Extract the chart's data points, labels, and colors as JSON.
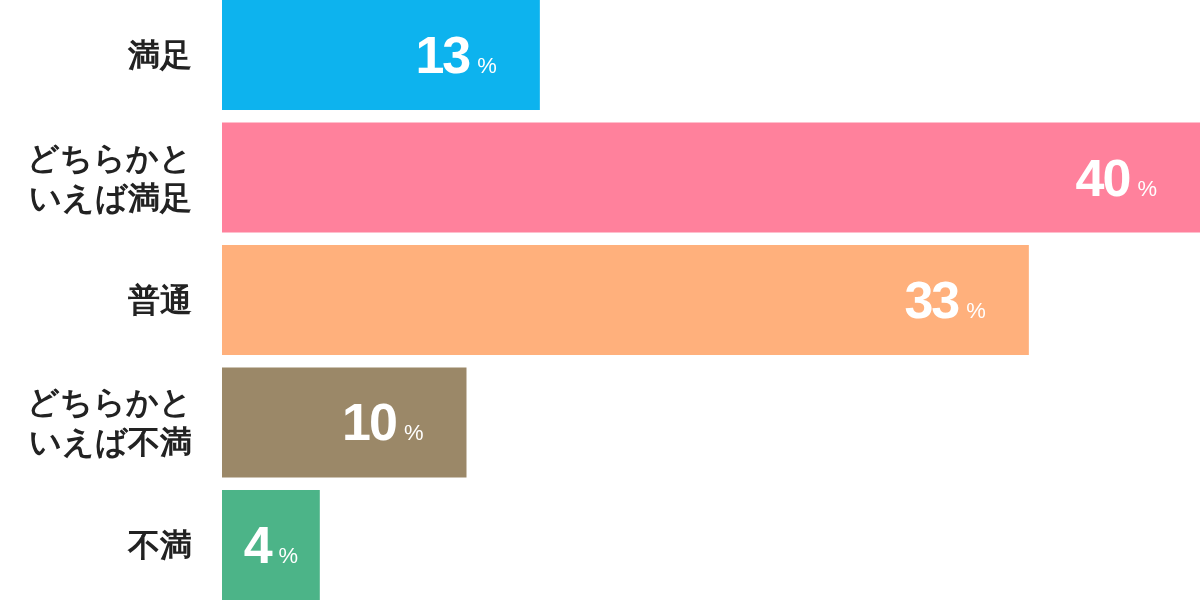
{
  "chart_data": {
    "type": "bar",
    "orientation": "horizontal",
    "categories": [
      "満足",
      "どちらかといえば満足",
      "普通",
      "どちらかといえば不満",
      "不満"
    ],
    "values": [
      13,
      40,
      33,
      10,
      4
    ],
    "colors": [
      "#0db3ee",
      "#ff819c",
      "#ffb07c",
      "#9b8868",
      "#4cb488"
    ],
    "value_labels": [
      "13%",
      "40%",
      "33%",
      "10%",
      "4%"
    ]
  }
}
